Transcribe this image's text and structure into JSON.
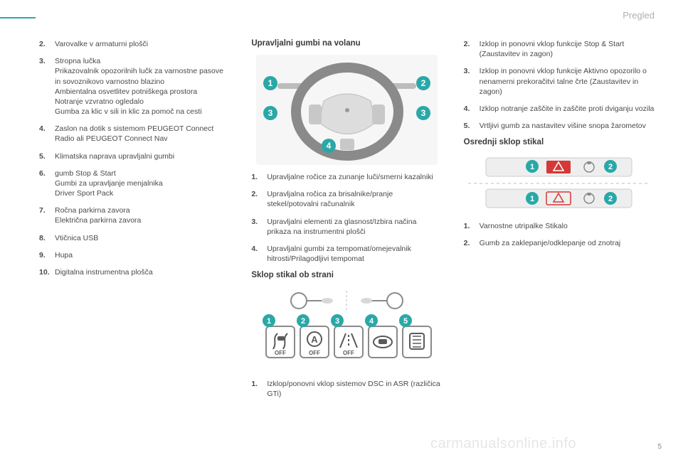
{
  "header": {
    "title": "Pregled",
    "accent_color": "#2aa8a8"
  },
  "footer": {
    "watermark": "carmanualsonline.info",
    "page_num": "5"
  },
  "col1": {
    "items": [
      {
        "n": "2.",
        "lines": [
          "Varovalke v armaturni plošči"
        ]
      },
      {
        "n": "3.",
        "lines": [
          "Stropna lučka",
          "Prikazovalnik opozorilnih lučk za varnostne pasove in sovoznikovo varnostno blazino",
          "Ambientalna osvetlitev potniškega prostora",
          "Notranje vzvratno ogledalo",
          "Gumba za klic v sili in klic za pomoč na cesti"
        ]
      },
      {
        "n": "4.",
        "lines": [
          "Zaslon na dotik s sistemom PEUGEOT Connect Radio ali PEUGEOT Connect Nav"
        ]
      },
      {
        "n": "5.",
        "lines": [
          "Klimatska naprava upravljalni gumbi"
        ]
      },
      {
        "n": "6.",
        "lines": [
          "gumb Stop & Start",
          "Gumbi za upravljanje menjalnika",
          "Driver Sport Pack"
        ]
      },
      {
        "n": "7.",
        "lines": [
          "Ročna parkirna zavora",
          "Električna parkirna zavora"
        ]
      },
      {
        "n": "8.",
        "lines": [
          "Vtičnica USB"
        ]
      },
      {
        "n": "9.",
        "lines": [
          "Hupa"
        ]
      },
      {
        "n": "10.",
        "lines": [
          "Digitalna instrumentna plošča"
        ]
      }
    ]
  },
  "col2": {
    "section1_title": "Upravljalni gumbi na volanu",
    "wheel_badges": {
      "fill": "#2aa8a8",
      "text_color": "#ffffff",
      "labels": [
        "1",
        "2",
        "3",
        "3",
        "4"
      ]
    },
    "wheel_list": [
      {
        "n": "1.",
        "t": "Upravljalne ročice za zunanje luči/smerni kazalniki"
      },
      {
        "n": "2.",
        "t": "Upravljalna ročica za brisalnike/pranje stekel/potovalni računalnik"
      },
      {
        "n": "3.",
        "t": "Upravljalni elementi za glasnost/Izbira načina prikaza na instrumentni plošči"
      },
      {
        "n": "4.",
        "t": "Upravljalni gumbi za tempomat/omejevalnik hitrosti/Prilagodljivi tempomat"
      }
    ],
    "section2_title": "Sklop stikal ob strani",
    "side_badges": {
      "labels": [
        "1",
        "2",
        "3",
        "4",
        "5"
      ]
    },
    "side_icon_labels": [
      "OFF",
      "OFF",
      "OFF",
      "",
      ""
    ],
    "side_list": [
      {
        "n": "1.",
        "t": "Izklop/ponovni vklop sistemov DSC in ASR (različica GTi)"
      }
    ]
  },
  "col3": {
    "top_list": [
      {
        "n": "2.",
        "t": "Izklop in ponovni vklop funkcije Stop & Start (Zaustavitev in zagon)"
      },
      {
        "n": "3.",
        "t": "Izklop in ponovni vklop funkcije Aktivno opozorilo o nenamerni prekoračitvi talne črte (Zaustavitev in zagon)"
      },
      {
        "n": "4.",
        "t": "Izklop notranje zaščite in zaščite proti dviganju vozila"
      },
      {
        "n": "5.",
        "t": "Vrtljivi gumb za nastavitev višine snopa žarometov"
      }
    ],
    "section_title": "Osrednji sklop stikal",
    "center_badges": {
      "labels": [
        "1",
        "2",
        "1",
        "2"
      ]
    },
    "center_list": [
      {
        "n": "1.",
        "t": "Varnostne utripalke Stikalo"
      },
      {
        "n": "2.",
        "t": "Gumb za zaklepanje/odklepanje od znotraj"
      }
    ]
  },
  "style": {
    "badge_fill": "#2aa8a8",
    "badge_text": "#ffffff",
    "gray_light": "#d8d8d8",
    "gray_mid": "#bcbcbc",
    "gray_dark": "#8a8a8a",
    "gray_vdark": "#5a5a5a",
    "bg": "#f4f4f4"
  }
}
